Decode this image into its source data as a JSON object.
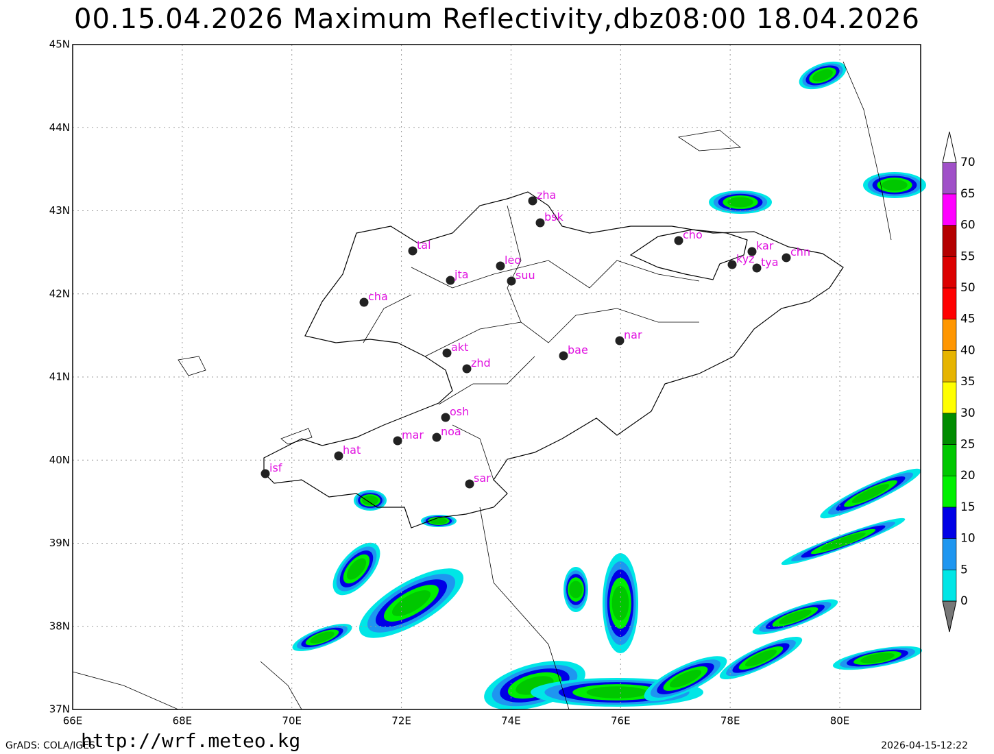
{
  "title": "00.15.04.2026  Maximum  Reflectivity,dbz08:00  18.04.2026",
  "lon_labels": [
    "66E",
    "68E",
    "70E",
    "72E",
    "74E",
    "76E",
    "78E",
    "80E"
  ],
  "lat_labels": [
    "37N",
    "38N",
    "39N",
    "40N",
    "41N",
    "42N",
    "43N",
    "44N",
    "45N"
  ],
  "stations": [
    "zha",
    "bsk",
    "tal",
    "leo",
    "jta",
    "suu",
    "cha",
    "cho",
    "kar",
    "kyz",
    "tya",
    "chn",
    "nar",
    "bae",
    "akt",
    "zhd",
    "osh",
    "noa",
    "mar",
    "hat",
    "isf",
    "sar"
  ],
  "colorbar": {
    "levels": [
      0,
      5,
      10,
      15,
      20,
      25,
      30,
      35,
      40,
      45,
      50,
      55,
      60,
      65,
      70
    ],
    "colors": [
      "#00e6e6",
      "#1e96f0",
      "#0000e6",
      "#00f000",
      "#00c800",
      "#008c00",
      "#ffff00",
      "#e6b400",
      "#ff9600",
      "#ff0000",
      "#dc0000",
      "#b40000",
      "#ff00ff",
      "#a050c8"
    ]
  },
  "footer_left": "GrADS: COLA/IGES",
  "footer_url": "http://wrf.meteo.kg",
  "footer_right": "2026-04-15-12:22"
}
